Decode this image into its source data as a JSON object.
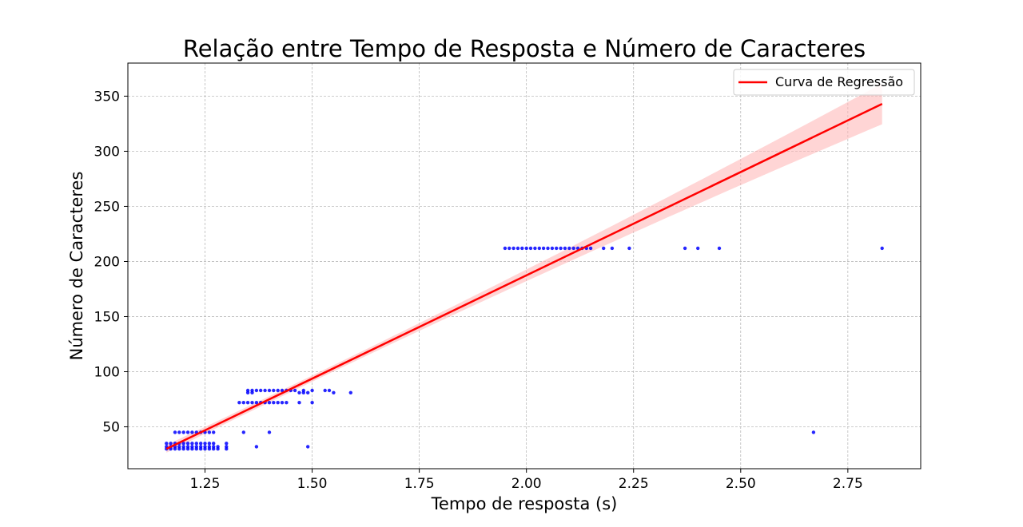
{
  "chart_data": {
    "type": "scatter",
    "title": "Relação entre Tempo de Resposta e Número de Caracteres",
    "xlabel": "Tempo de resposta (s)",
    "ylabel": "Número de Caracteres",
    "xlim": [
      1.07,
      2.92
    ],
    "ylim": [
      12,
      380
    ],
    "xticks": [
      1.25,
      1.5,
      1.75,
      2.0,
      2.25,
      2.5,
      2.75
    ],
    "xtick_labels": [
      "1.25",
      "1.50",
      "1.75",
      "2.00",
      "2.25",
      "2.50",
      "2.75"
    ],
    "yticks": [
      50,
      100,
      150,
      200,
      250,
      300,
      350
    ],
    "ytick_labels": [
      "50",
      "100",
      "150",
      "200",
      "250",
      "300",
      "350"
    ],
    "grid": true,
    "legend": {
      "placement": "top-right",
      "entries": [
        "Curva de Regressão"
      ]
    },
    "colors": {
      "points": "#0000ff",
      "regression": "#ff0000",
      "band": "#ffb3b3"
    },
    "regression": {
      "x_start": 1.16,
      "y_start": 30,
      "x_end": 2.83,
      "y_end": 343,
      "ci_upper_at_end": 355,
      "ci_lower_at_end": 318
    },
    "points": [
      [
        1.16,
        30
      ],
      [
        1.17,
        30
      ],
      [
        1.18,
        30
      ],
      [
        1.19,
        30
      ],
      [
        1.2,
        30
      ],
      [
        1.21,
        30
      ],
      [
        1.22,
        30
      ],
      [
        1.23,
        30
      ],
      [
        1.24,
        30
      ],
      [
        1.25,
        30
      ],
      [
        1.26,
        30
      ],
      [
        1.27,
        30
      ],
      [
        1.28,
        30
      ],
      [
        1.3,
        30
      ],
      [
        1.16,
        32
      ],
      [
        1.17,
        32
      ],
      [
        1.18,
        32
      ],
      [
        1.19,
        32
      ],
      [
        1.2,
        32
      ],
      [
        1.21,
        32
      ],
      [
        1.22,
        32
      ],
      [
        1.23,
        32
      ],
      [
        1.24,
        32
      ],
      [
        1.25,
        32
      ],
      [
        1.26,
        32
      ],
      [
        1.27,
        32
      ],
      [
        1.28,
        32
      ],
      [
        1.3,
        32
      ],
      [
        1.37,
        32
      ],
      [
        1.49,
        32
      ],
      [
        1.16,
        35
      ],
      [
        1.17,
        35
      ],
      [
        1.18,
        35
      ],
      [
        1.19,
        35
      ],
      [
        1.2,
        35
      ],
      [
        1.21,
        35
      ],
      [
        1.22,
        35
      ],
      [
        1.23,
        35
      ],
      [
        1.24,
        35
      ],
      [
        1.25,
        35
      ],
      [
        1.26,
        35
      ],
      [
        1.27,
        35
      ],
      [
        1.3,
        35
      ],
      [
        1.18,
        45
      ],
      [
        1.19,
        45
      ],
      [
        1.2,
        45
      ],
      [
        1.21,
        45
      ],
      [
        1.22,
        45
      ],
      [
        1.23,
        45
      ],
      [
        1.24,
        45
      ],
      [
        1.25,
        45
      ],
      [
        1.26,
        45
      ],
      [
        1.27,
        45
      ],
      [
        1.34,
        45
      ],
      [
        1.4,
        45
      ],
      [
        2.67,
        45
      ],
      [
        1.33,
        72
      ],
      [
        1.34,
        72
      ],
      [
        1.35,
        72
      ],
      [
        1.36,
        72
      ],
      [
        1.37,
        72
      ],
      [
        1.38,
        72
      ],
      [
        1.39,
        72
      ],
      [
        1.4,
        72
      ],
      [
        1.41,
        72
      ],
      [
        1.42,
        72
      ],
      [
        1.43,
        72
      ],
      [
        1.44,
        72
      ],
      [
        1.47,
        72
      ],
      [
        1.5,
        72
      ],
      [
        1.35,
        81
      ],
      [
        1.36,
        81
      ],
      [
        1.47,
        81
      ],
      [
        1.48,
        81
      ],
      [
        1.49,
        81
      ],
      [
        1.55,
        81
      ],
      [
        1.59,
        81
      ],
      [
        1.35,
        83
      ],
      [
        1.36,
        83
      ],
      [
        1.37,
        83
      ],
      [
        1.38,
        83
      ],
      [
        1.39,
        83
      ],
      [
        1.4,
        83
      ],
      [
        1.41,
        83
      ],
      [
        1.42,
        83
      ],
      [
        1.43,
        83
      ],
      [
        1.44,
        83
      ],
      [
        1.45,
        83
      ],
      [
        1.46,
        83
      ],
      [
        1.48,
        83
      ],
      [
        1.5,
        83
      ],
      [
        1.53,
        83
      ],
      [
        1.54,
        83
      ],
      [
        1.95,
        212
      ],
      [
        1.96,
        212
      ],
      [
        1.97,
        212
      ],
      [
        1.98,
        212
      ],
      [
        1.99,
        212
      ],
      [
        2.0,
        212
      ],
      [
        2.01,
        212
      ],
      [
        2.02,
        212
      ],
      [
        2.03,
        212
      ],
      [
        2.04,
        212
      ],
      [
        2.05,
        212
      ],
      [
        2.06,
        212
      ],
      [
        2.07,
        212
      ],
      [
        2.08,
        212
      ],
      [
        2.09,
        212
      ],
      [
        2.1,
        212
      ],
      [
        2.11,
        212
      ],
      [
        2.12,
        212
      ],
      [
        2.13,
        212
      ],
      [
        2.14,
        212
      ],
      [
        2.15,
        212
      ],
      [
        2.18,
        212
      ],
      [
        2.2,
        212
      ],
      [
        2.24,
        212
      ],
      [
        2.37,
        212
      ],
      [
        2.4,
        212
      ],
      [
        2.45,
        212
      ],
      [
        2.83,
        212
      ]
    ]
  }
}
